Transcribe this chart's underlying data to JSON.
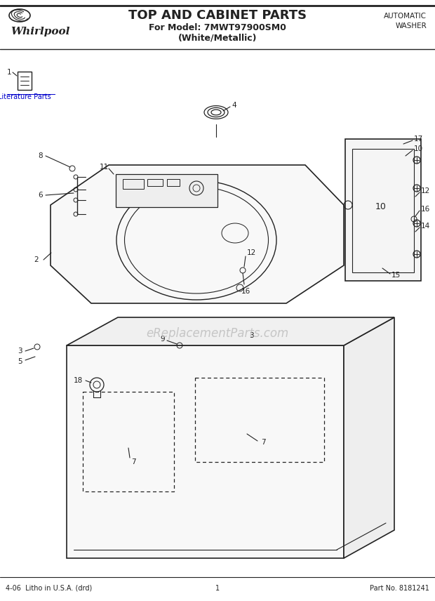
{
  "title": "TOP AND CABINET PARTS",
  "model_line": "For Model: 7MWT97900SM0",
  "color_line": "(White/Metallic)",
  "brand": "Whirlpool",
  "top_right": "AUTOMATIC\nWASHER",
  "footer_left": "4-06  Litho in U.S.A. (drd)",
  "footer_center": "1",
  "footer_right": "Part No. 8181241",
  "watermark": "eReplacementParts.com",
  "literature_label": "Literature Parts",
  "bg_color": "#ffffff",
  "line_color": "#222222",
  "text_color": "#222222",
  "watermark_color": "#bbbbbb",
  "link_color": "#0000cc"
}
